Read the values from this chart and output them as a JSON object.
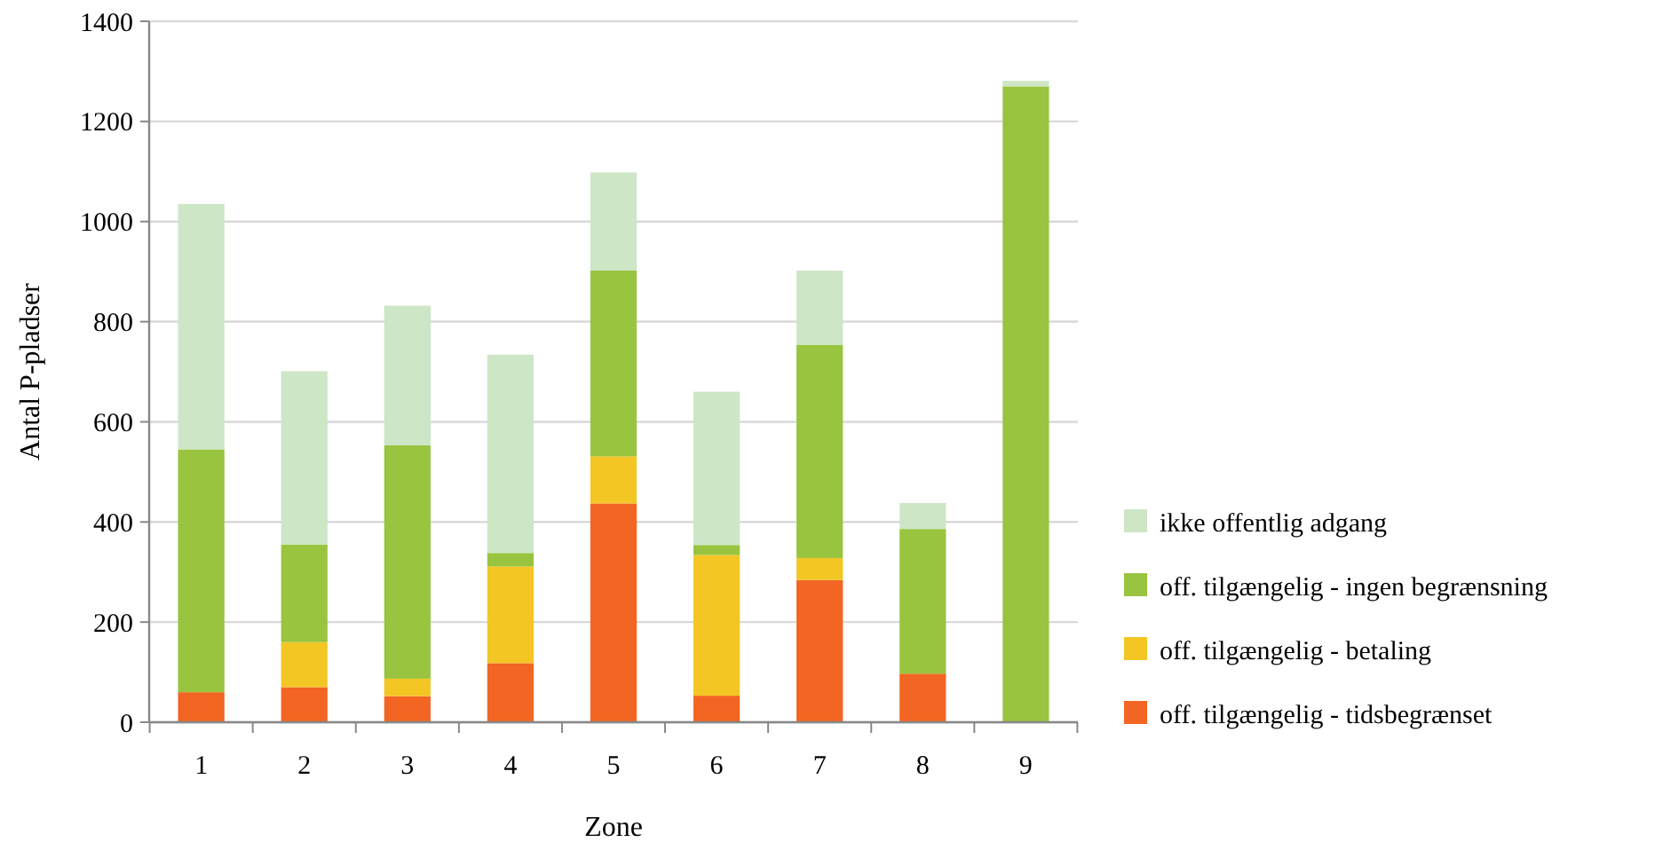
{
  "chart_data": {
    "type": "bar",
    "stacked": true,
    "xlabel": "Zone",
    "ylabel": "Antal P-pladser",
    "categories": [
      "1",
      "2",
      "3",
      "4",
      "5",
      "6",
      "7",
      "8",
      "9"
    ],
    "series": [
      {
        "name": "off. tilgængelig - tidsbegrænset",
        "color": "#f26522",
        "values": [
          60,
          70,
          52,
          118,
          437,
          53,
          284,
          97,
          0
        ]
      },
      {
        "name": "off. tilgængelig - betaling",
        "color": "#f4c623",
        "values": [
          0,
          90,
          35,
          193,
          94,
          281,
          44,
          0,
          0
        ]
      },
      {
        "name": "off. tilgængelig - ingen begrænsning",
        "color": "#98c43f",
        "values": [
          485,
          195,
          466,
          27,
          371,
          20,
          426,
          289,
          1270
        ]
      },
      {
        "name": "ikke offentlig adgang",
        "color": "#cde6c5",
        "values": [
          490,
          346,
          279,
          396,
          196,
          306,
          148,
          52,
          11
        ]
      }
    ],
    "ylim": [
      0,
      1400
    ],
    "yticks": [
      0,
      200,
      400,
      600,
      800,
      1000,
      1200,
      1400
    ],
    "grid": "y",
    "legend": "right"
  }
}
